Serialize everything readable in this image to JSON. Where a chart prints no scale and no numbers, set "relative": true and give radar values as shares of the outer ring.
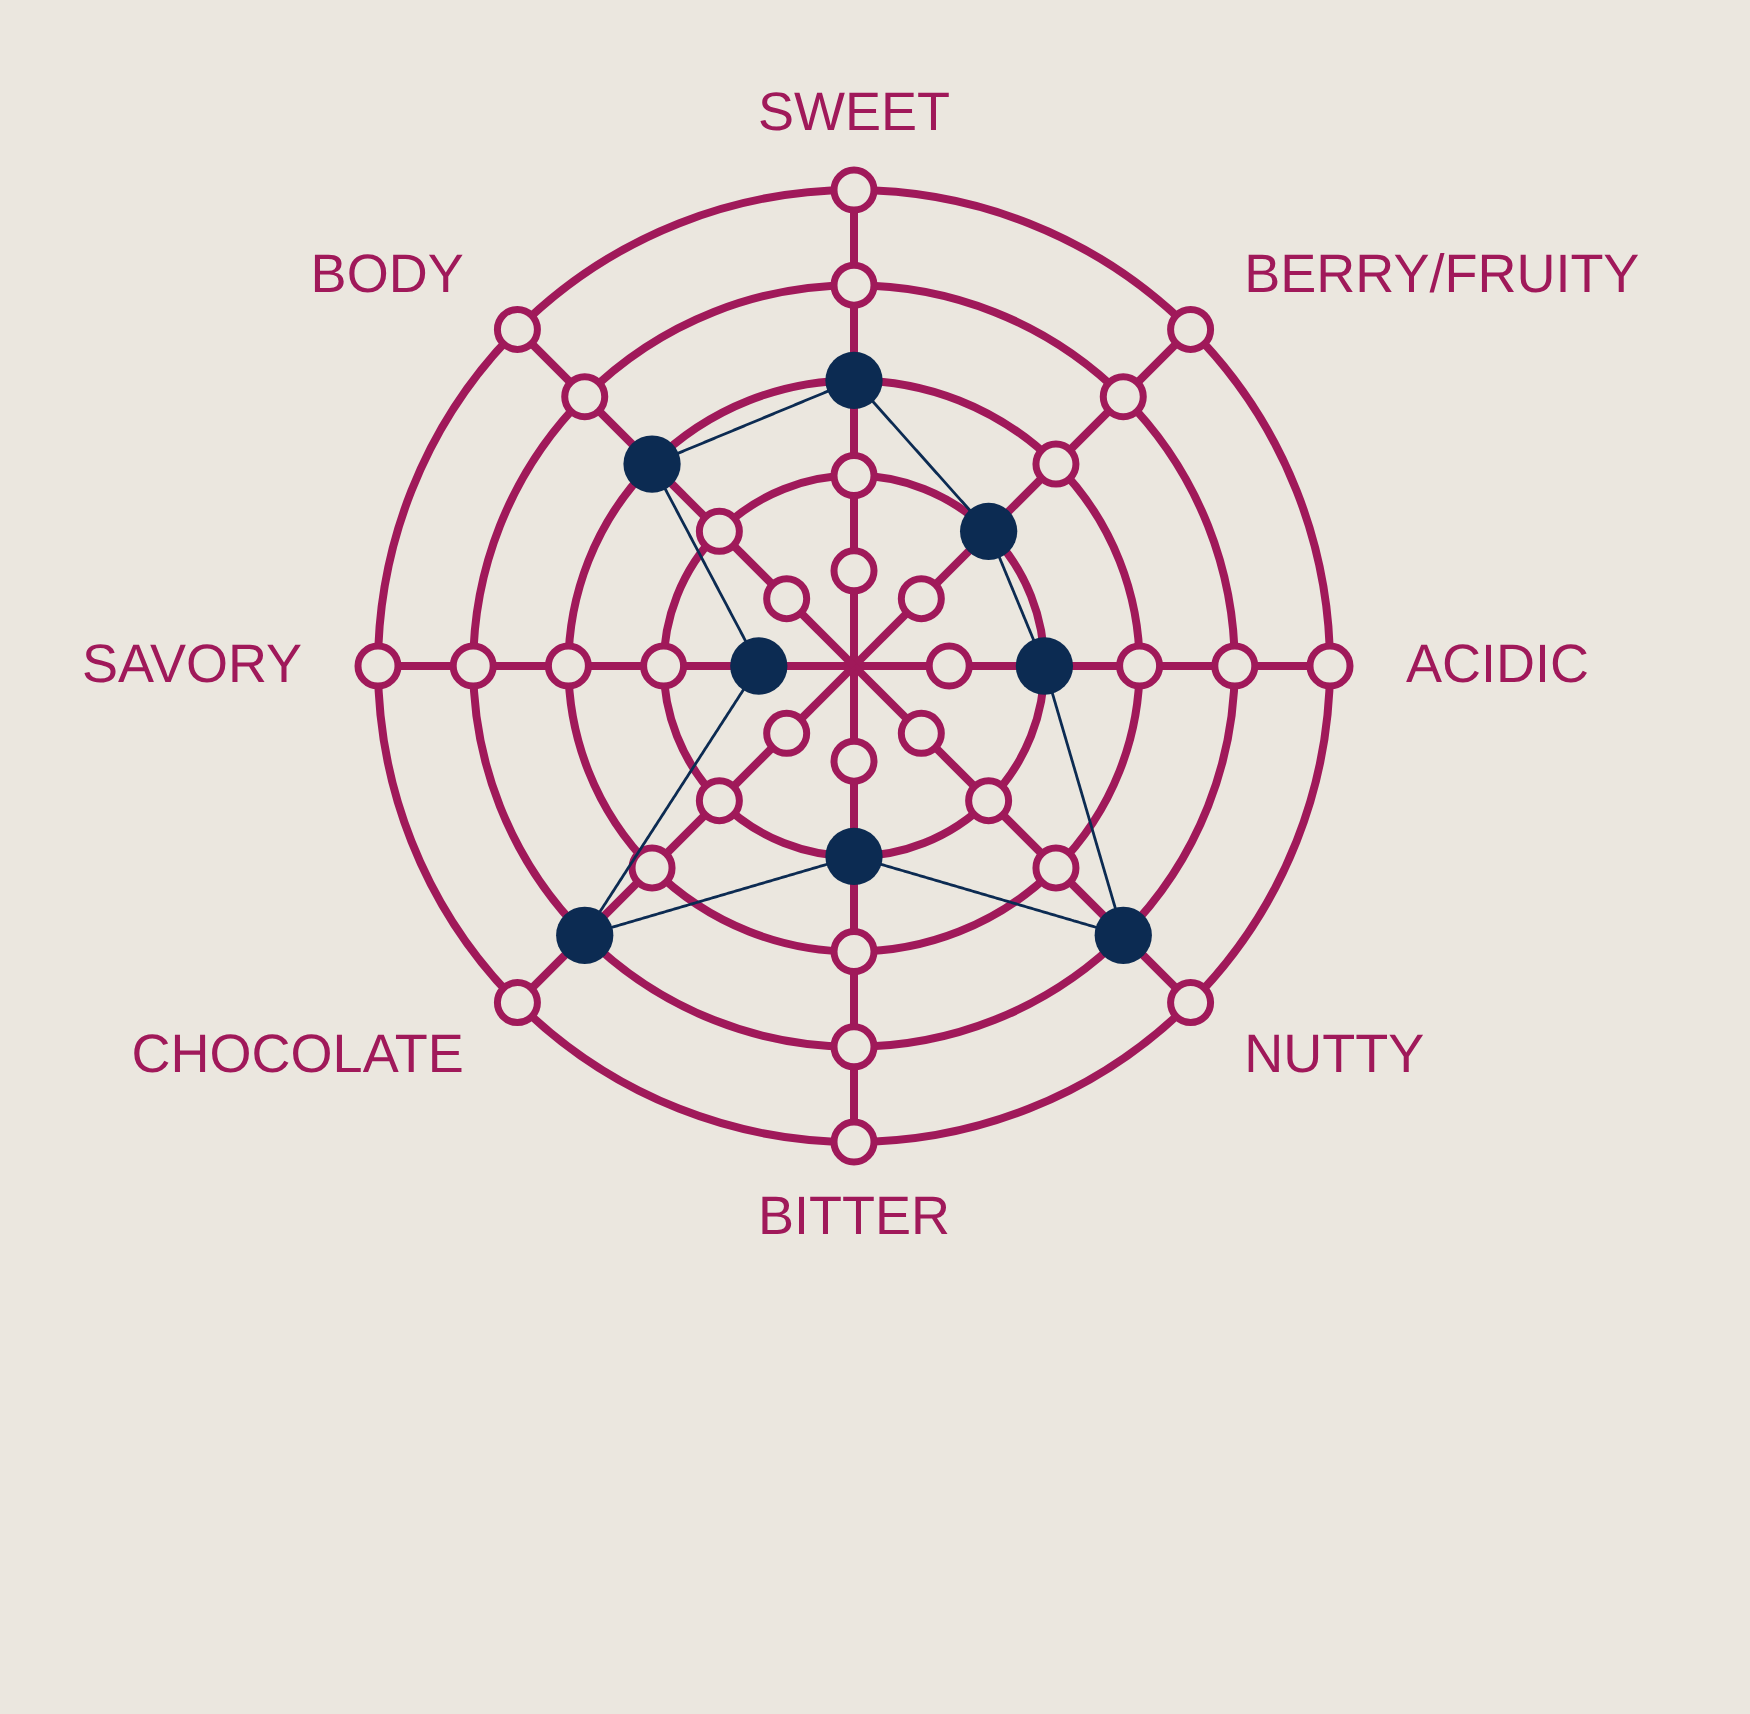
{
  "chart_data": {
    "type": "radar",
    "categories": [
      "SWEET",
      "BERRY/FRUITY",
      "ACIDIC",
      "NUTTY",
      "BITTER",
      "CHOCOLATE",
      "SAVORY",
      "BODY"
    ],
    "relative": true,
    "grid": true,
    "marker": "circle",
    "line_style": "solid",
    "series": [
      {
        "color": "#0c2b52",
        "values": [
          0.6,
          0.4,
          0.4,
          0.8,
          0.4,
          0.8,
          0.2,
          0.6
        ]
      }
    ]
  }
}
